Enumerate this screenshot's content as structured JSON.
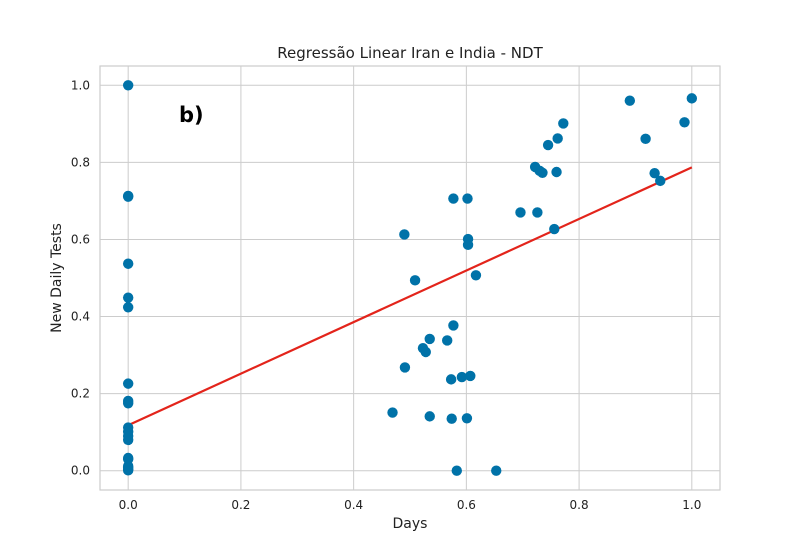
{
  "chart_data": {
    "type": "scatter",
    "title": "Regressão Linear Iran e India - NDT",
    "xlabel": "Days",
    "ylabel": "New Daily Tests",
    "annotation": "b)",
    "xlim": [
      -0.05,
      1.05
    ],
    "ylim": [
      -0.05,
      1.05
    ],
    "xticks": [
      0.0,
      0.2,
      0.4,
      0.6,
      0.8,
      1.0
    ],
    "yticks": [
      0.0,
      0.2,
      0.4,
      0.6,
      0.8,
      1.0
    ],
    "xtick_labels": [
      "0.0",
      "0.2",
      "0.4",
      "0.6",
      "0.8",
      "1.0"
    ],
    "ytick_labels": [
      "0.0",
      "0.2",
      "0.4",
      "0.6",
      "0.8",
      "1.0"
    ],
    "grid": true,
    "colors": {
      "points": "#0072a8",
      "regression": "#e3241b",
      "grid": "#cccccc",
      "frame": "#cccccc",
      "background": "#ffffff"
    },
    "points": [
      [
        0.0,
        1.0
      ],
      [
        0.0,
        0.713
      ],
      [
        0.0,
        0.711
      ],
      [
        0.0,
        0.537
      ],
      [
        0.0,
        0.449
      ],
      [
        0.0,
        0.424
      ],
      [
        0.0,
        0.226
      ],
      [
        0.0,
        0.181
      ],
      [
        0.0,
        0.175
      ],
      [
        0.0,
        0.112
      ],
      [
        0.0,
        0.101
      ],
      [
        0.0,
        0.09
      ],
      [
        0.0,
        0.08
      ],
      [
        0.0,
        0.033
      ],
      [
        0.0,
        0.03
      ],
      [
        0.0,
        0.012
      ],
      [
        0.0,
        0.008
      ],
      [
        0.0,
        0.004
      ],
      [
        0.0,
        0.001
      ],
      [
        0.469,
        0.151
      ],
      [
        0.49,
        0.613
      ],
      [
        0.491,
        0.268
      ],
      [
        0.509,
        0.494
      ],
      [
        0.523,
        0.318
      ],
      [
        0.528,
        0.308
      ],
      [
        0.535,
        0.342
      ],
      [
        0.535,
        0.141
      ],
      [
        0.566,
        0.338
      ],
      [
        0.573,
        0.237
      ],
      [
        0.574,
        0.135
      ],
      [
        0.577,
        0.377
      ],
      [
        0.577,
        0.706
      ],
      [
        0.583,
        0.0
      ],
      [
        0.592,
        0.243
      ],
      [
        0.601,
        0.136
      ],
      [
        0.602,
        0.706
      ],
      [
        0.603,
        0.601
      ],
      [
        0.603,
        0.586
      ],
      [
        0.607,
        0.246
      ],
      [
        0.617,
        0.507
      ],
      [
        0.653,
        0.0
      ],
      [
        0.696,
        0.67
      ],
      [
        0.722,
        0.788
      ],
      [
        0.726,
        0.67
      ],
      [
        0.73,
        0.778
      ],
      [
        0.735,
        0.773
      ],
      [
        0.745,
        0.845
      ],
      [
        0.756,
        0.627
      ],
      [
        0.76,
        0.775
      ],
      [
        0.762,
        0.862
      ],
      [
        0.772,
        0.901
      ],
      [
        0.89,
        0.96
      ],
      [
        0.918,
        0.861
      ],
      [
        0.934,
        0.772
      ],
      [
        0.944,
        0.752
      ],
      [
        0.987,
        0.904
      ],
      [
        1.0,
        0.966
      ]
    ],
    "regression_line": {
      "x": [
        0.0,
        1.0
      ],
      "y": [
        0.118,
        0.787
      ]
    }
  }
}
